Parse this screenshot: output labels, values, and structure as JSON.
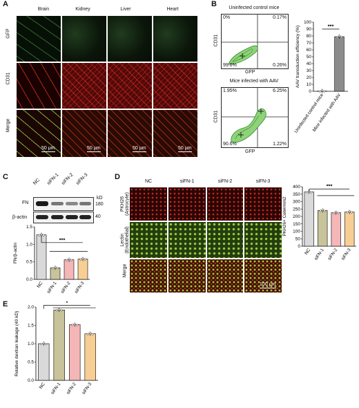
{
  "panels": {
    "A": {
      "label": "A",
      "columns": [
        "Brain",
        "Kidney",
        "Liver",
        "Heart"
      ],
      "rows": [
        "GFP",
        "CD31",
        "Merge"
      ],
      "scale_bar": "50 μm"
    },
    "B": {
      "label": "B",
      "facs_top": {
        "title": "Uninfected control mice",
        "ul": "0%",
        "ur": "0.17%",
        "ll": "99.6%",
        "lr": "0.26%",
        "xlabel": "GFP",
        "ylabel": "CD31"
      },
      "facs_bottom": {
        "title": "Mice infected with AAV",
        "ul": "1.95%",
        "ur": "6.25%",
        "ll": "90.6%",
        "lr": "1.22%",
        "xlabel": "GFP",
        "ylabel": "CD31"
      }
    },
    "C": {
      "label": "C",
      "blot": {
        "lanes": [
          "NC",
          "siFN-1",
          "siFN-2",
          "siFN-3"
        ],
        "kd_label": "kD",
        "rows": [
          {
            "name": "FN",
            "kd": "180"
          },
          {
            "name": "β-actin",
            "kd": "40"
          }
        ]
      }
    },
    "D": {
      "label": "D",
      "columns": [
        "NC",
        "siFN-1",
        "siFN-2",
        "siFN-3"
      ],
      "rows": [
        "PKH26\n(Astrocyte)",
        "Lectin\n(Endothelial)",
        "Merge"
      ],
      "row_line1": [
        "PKH26",
        "Lectin",
        "Merge"
      ],
      "row_line2": [
        "(Astrocyte)",
        "(Endothelial)",
        ""
      ],
      "scale_bar": "100 μm"
    },
    "E": {
      "label": "E"
    }
  },
  "chart_data": [
    {
      "id": "B-bar",
      "type": "bar",
      "categories": [
        "Uninfected control mice",
        "Mice infected with AAV"
      ],
      "values": [
        0.3,
        79
      ],
      "ylabel": "AAV transduction efficiency (%)",
      "ylim": [
        0,
        100
      ],
      "yticks": [
        0,
        10,
        20,
        30,
        40,
        50,
        60,
        70,
        80,
        90,
        100
      ],
      "significance": "***",
      "colors": [
        "#ffffff",
        "#8c8c8c"
      ]
    },
    {
      "id": "C-bar",
      "type": "bar",
      "categories": [
        "NC",
        "siFN-1",
        "siFN-2",
        "siFN-3"
      ],
      "values": [
        1.27,
        0.33,
        0.56,
        0.58
      ],
      "ylabel": "FN/β-actin",
      "ylim": [
        0,
        1.5
      ],
      "yticks": [
        0.0,
        0.5,
        1.0,
        1.5
      ],
      "significance": "***",
      "colors": [
        "#d9d9d9",
        "#c8c39a",
        "#f4b6b6",
        "#f7cf95"
      ]
    },
    {
      "id": "D-bar",
      "type": "bar",
      "categories": [
        "NC",
        "siFN-1",
        "siFN-2",
        "siFN-3"
      ],
      "values": [
        365,
        240,
        225,
        230
      ],
      "ylabel": "PKH26+ Cell#/mm2",
      "ylim": [
        0,
        400
      ],
      "yticks": [
        0,
        50,
        100,
        150,
        200,
        250,
        300,
        350,
        400
      ],
      "significance": "***",
      "colors": [
        "#d9d9d9",
        "#c8c39a",
        "#f4b6b6",
        "#f7cf95"
      ]
    },
    {
      "id": "E-bar",
      "type": "bar",
      "categories": [
        "NC",
        "siFN-1",
        "siFN-2",
        "siFN-3"
      ],
      "values": [
        1.0,
        1.92,
        1.52,
        1.27
      ],
      "ylabel": "Relative dextran leakage (40 kD)",
      "ylim": [
        0,
        2.0
      ],
      "yticks": [
        0.0,
        0.5,
        1.0,
        1.5,
        2.0
      ],
      "significance": "*",
      "colors": [
        "#d9d9d9",
        "#c8c39a",
        "#f4b6b6",
        "#f7cf95"
      ]
    }
  ]
}
